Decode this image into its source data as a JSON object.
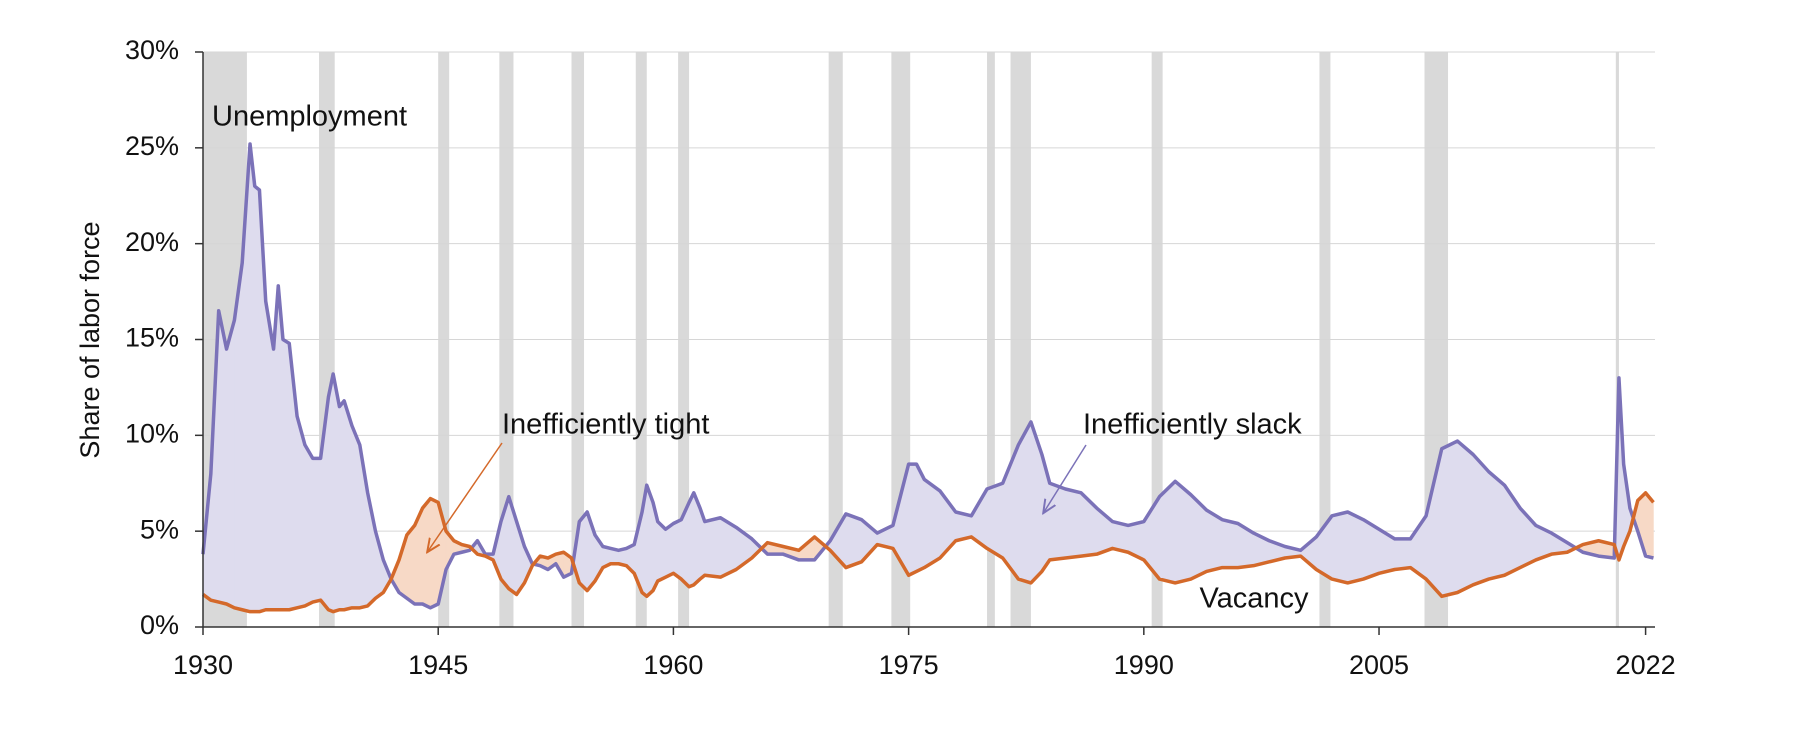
{
  "chart_data": {
    "type": "line",
    "y_label": "Share of labor force",
    "x": [
      1930,
      1930.5,
      1931,
      1931.5,
      1932,
      1932.5,
      1933,
      1933.3,
      1933.6,
      1934,
      1934.5,
      1934.8,
      1935.1,
      1935.5,
      1936,
      1936.5,
      1937,
      1937.5,
      1938,
      1938.3,
      1938.7,
      1939,
      1939.5,
      1940,
      1940.5,
      1941,
      1941.5,
      1942,
      1942.5,
      1943,
      1943.5,
      1944,
      1944.5,
      1945,
      1945.5,
      1946,
      1946.5,
      1947,
      1947.5,
      1948,
      1948.5,
      1949,
      1949.5,
      1950,
      1950.5,
      1951,
      1951.5,
      1952,
      1952.5,
      1953,
      1953.5,
      1954,
      1954.5,
      1955,
      1955.5,
      1956,
      1956.5,
      1957,
      1957.5,
      1958,
      1958.3,
      1958.7,
      1959,
      1959.5,
      1960,
      1960.5,
      1961,
      1961.3,
      1961.7,
      1962,
      1963,
      1964,
      1965,
      1966,
      1967,
      1968,
      1969,
      1970,
      1971,
      1972,
      1973,
      1974,
      1975,
      1975.5,
      1976,
      1977,
      1978,
      1979,
      1980,
      1981,
      1982,
      1982.8,
      1983.5,
      1984,
      1985,
      1986,
      1987,
      1988,
      1989,
      1990,
      1991,
      1992,
      1993,
      1994,
      1995,
      1996,
      1997,
      1998,
      1999,
      2000,
      2001,
      2002,
      2003,
      2004,
      2005,
      2006,
      2007,
      2008,
      2009,
      2010,
      2011,
      2012,
      2013,
      2014,
      2015,
      2016,
      2017,
      2018,
      2019,
      2020,
      2020.3,
      2020.6,
      2021,
      2021.5,
      2022,
      2022.5
    ],
    "series": [
      {
        "name": "Unemployment",
        "color": "#7b72b8",
        "values": [
          3.8,
          8,
          16.5,
          14.5,
          16,
          19,
          25.2,
          23,
          22.8,
          17,
          14.5,
          17.8,
          15,
          14.8,
          11,
          9.5,
          8.8,
          8.8,
          12,
          13.2,
          11.5,
          11.8,
          10.5,
          9.5,
          7,
          5,
          3.5,
          2.5,
          1.8,
          1.5,
          1.2,
          1.2,
          1.0,
          1.2,
          3,
          3.8,
          3.9,
          4.0,
          4.5,
          3.8,
          3.8,
          5.5,
          6.8,
          5.5,
          4.2,
          3.3,
          3.2,
          3.0,
          3.3,
          2.6,
          2.8,
          5.5,
          6.0,
          4.8,
          4.2,
          4.1,
          4.0,
          4.1,
          4.3,
          6.0,
          7.4,
          6.5,
          5.5,
          5.1,
          5.4,
          5.6,
          6.5,
          7.0,
          6.2,
          5.5,
          5.7,
          5.2,
          4.6,
          3.8,
          3.8,
          3.5,
          3.5,
          4.5,
          5.9,
          5.6,
          4.9,
          5.3,
          8.5,
          8.5,
          7.7,
          7.1,
          6.0,
          5.8,
          7.2,
          7.5,
          9.5,
          10.7,
          9.0,
          7.5,
          7.2,
          7.0,
          6.2,
          5.5,
          5.3,
          5.5,
          6.8,
          7.6,
          6.9,
          6.1,
          5.6,
          5.4,
          4.9,
          4.5,
          4.2,
          4.0,
          4.7,
          5.8,
          6.0,
          5.6,
          5.1,
          4.6,
          4.6,
          5.8,
          9.3,
          9.7,
          9.0,
          8.1,
          7.4,
          6.2,
          5.3,
          4.9,
          4.4,
          3.9,
          3.7,
          3.6,
          13.0,
          8.5,
          6.2,
          5.0,
          3.7,
          3.6
        ]
      },
      {
        "name": "Vacancy",
        "color": "#d4692a",
        "values": [
          1.7,
          1.4,
          1.3,
          1.2,
          1.0,
          0.9,
          0.8,
          0.8,
          0.8,
          0.9,
          0.9,
          0.9,
          0.9,
          0.9,
          1.0,
          1.1,
          1.3,
          1.4,
          0.9,
          0.8,
          0.9,
          0.9,
          1.0,
          1.0,
          1.1,
          1.5,
          1.8,
          2.5,
          3.5,
          4.8,
          5.3,
          6.2,
          6.7,
          6.5,
          5.0,
          4.5,
          4.3,
          4.2,
          3.8,
          3.7,
          3.5,
          2.5,
          2.0,
          1.7,
          2.3,
          3.2,
          3.7,
          3.6,
          3.8,
          3.9,
          3.6,
          2.3,
          1.9,
          2.4,
          3.1,
          3.3,
          3.3,
          3.2,
          2.8,
          1.8,
          1.6,
          1.9,
          2.4,
          2.6,
          2.8,
          2.5,
          2.1,
          2.2,
          2.5,
          2.7,
          2.6,
          3.0,
          3.6,
          4.4,
          4.2,
          4.0,
          4.7,
          4.0,
          3.1,
          3.4,
          4.3,
          4.1,
          2.7,
          2.9,
          3.1,
          3.6,
          4.5,
          4.7,
          4.1,
          3.6,
          2.5,
          2.3,
          2.9,
          3.5,
          3.6,
          3.7,
          3.8,
          4.1,
          3.9,
          3.5,
          2.5,
          2.3,
          2.5,
          2.9,
          3.1,
          3.1,
          3.2,
          3.4,
          3.6,
          3.7,
          3.0,
          2.5,
          2.3,
          2.5,
          2.8,
          3.0,
          3.1,
          2.5,
          1.6,
          1.8,
          2.2,
          2.5,
          2.7,
          3.1,
          3.5,
          3.8,
          3.9,
          4.3,
          4.5,
          4.3,
          3.5,
          4.2,
          5.0,
          6.6,
          7.0,
          6.5
        ]
      }
    ],
    "annotations": [
      "Inefficiently tight",
      "Inefficiently slack"
    ],
    "recessions": [
      [
        1930,
        1932.8
      ],
      [
        1937.4,
        1938.4
      ],
      [
        1945.0,
        1945.7
      ],
      [
        1948.9,
        1949.8
      ],
      [
        1953.5,
        1954.3
      ],
      [
        1957.6,
        1958.3
      ],
      [
        1960.3,
        1961.0
      ],
      [
        1969.9,
        1970.8
      ],
      [
        1973.9,
        1975.1
      ],
      [
        1980.0,
        1980.5
      ],
      [
        1981.5,
        1982.8
      ],
      [
        1990.5,
        1991.2
      ],
      [
        2001.2,
        2001.9
      ],
      [
        2007.9,
        2009.4
      ],
      [
        2020.1,
        2020.3
      ]
    ],
    "xlim": [
      1930,
      2022.6
    ],
    "xticks": [
      1930,
      1945,
      1960,
      1975,
      1990,
      2005,
      2022
    ],
    "ylim": [
      0,
      30
    ],
    "yticks": [
      {
        "value": 0,
        "label": "0%"
      },
      {
        "value": 5,
        "label": "5%"
      },
      {
        "value": 10,
        "label": "10%"
      },
      {
        "value": 15,
        "label": "15%"
      },
      {
        "value": 20,
        "label": "20%"
      },
      {
        "value": 25,
        "label": "25%"
      },
      {
        "value": 30,
        "label": "30%"
      }
    ],
    "grid": true,
    "fill_colors": {
      "slack": "#dedcee",
      "tight": "#f7d9c6"
    },
    "recession_color": "#d9d9d9"
  }
}
